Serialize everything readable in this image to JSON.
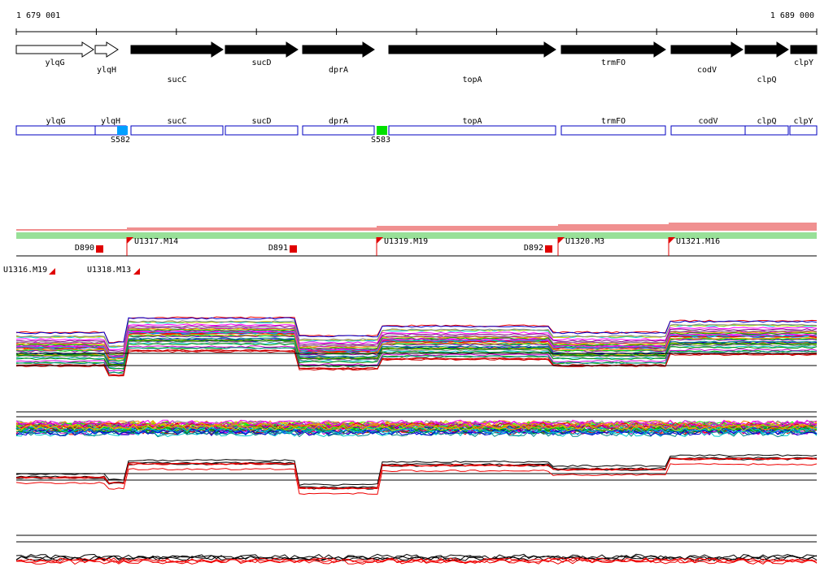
{
  "ruler": {
    "start": "1 679 001",
    "end": "1 689 000"
  },
  "gene_track": {
    "genes": [
      "ylqG",
      "ylqH",
      "sucC",
      "sucD",
      "dprA",
      "topA",
      "trmFO",
      "codV",
      "clpQ",
      "clpY"
    ]
  },
  "feature_track": {
    "genes": [
      "ylqG",
      "ylqH",
      "sucC",
      "sucD",
      "dprA",
      "topA",
      "trmFO",
      "codV",
      "clpQ",
      "clpY"
    ],
    "markers": [
      "S582",
      "S583"
    ]
  },
  "variant_track": {
    "labels": [
      "D890",
      "U1316.M19",
      "U1317.M14",
      "U1318.M13",
      "D891",
      "U1319.M19",
      "D892",
      "U1320.M3",
      "U1321.M16"
    ]
  }
}
